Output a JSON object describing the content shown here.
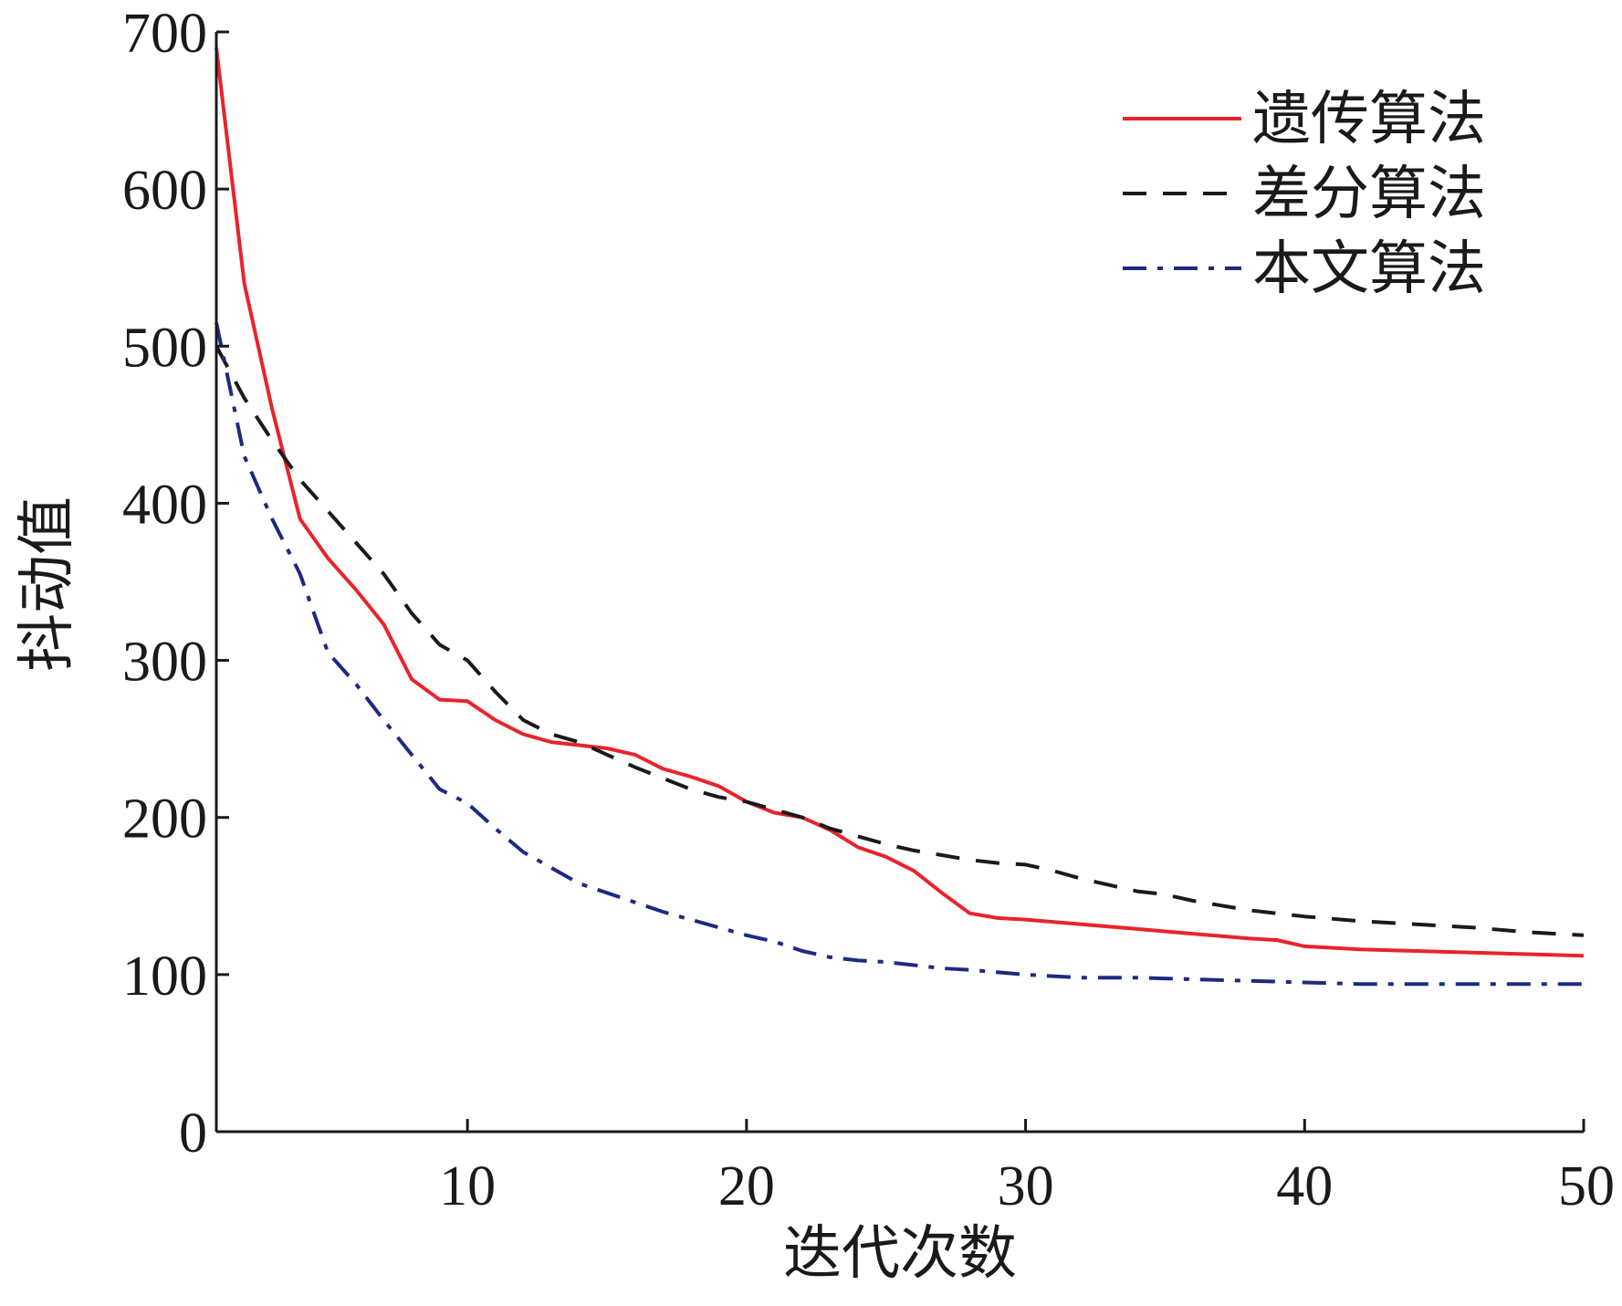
{
  "chart_data": {
    "type": "line",
    "xlabel": "迭代次数",
    "ylabel": "抖动值",
    "xlim": [
      1,
      50
    ],
    "ylim": [
      0,
      700
    ],
    "xticks": [
      10,
      20,
      30,
      40,
      50
    ],
    "yticks": [
      0,
      100,
      200,
      300,
      400,
      500,
      600,
      700
    ],
    "grid": false,
    "legend_position": "top-right",
    "series": [
      {
        "name": "遗传算法",
        "color": "#e8242b",
        "dash": "solid",
        "x": [
          1,
          2,
          3,
          4,
          5,
          6,
          7,
          8,
          9,
          10,
          11,
          12,
          13,
          14,
          15,
          16,
          17,
          18,
          19,
          20,
          21,
          22,
          23,
          24,
          25,
          26,
          27,
          28,
          29,
          30,
          32,
          34,
          36,
          38,
          39,
          40,
          42,
          44,
          46,
          48,
          50
        ],
        "y": [
          690,
          540,
          460,
          390,
          365,
          345,
          323,
          288,
          275,
          274,
          262,
          253,
          248,
          246,
          244,
          240,
          231,
          226,
          220,
          210,
          203,
          200,
          192,
          181,
          175,
          166,
          152,
          139,
          136,
          135,
          132,
          129,
          126,
          123,
          122,
          118,
          116,
          115,
          114,
          113,
          112
        ]
      },
      {
        "name": "差分算法",
        "color": "#1a1a1a",
        "dash": "dashed",
        "x": [
          1,
          2,
          3,
          4,
          5,
          6,
          7,
          8,
          9,
          10,
          11,
          12,
          13,
          14,
          15,
          16,
          17,
          18,
          19,
          20,
          21,
          22,
          23,
          24,
          25,
          26,
          27,
          28,
          29,
          30,
          31,
          32,
          33,
          34,
          35,
          36,
          38,
          40,
          42,
          44,
          46,
          48,
          50
        ],
        "y": [
          500,
          467,
          440,
          415,
          395,
          375,
          355,
          330,
          310,
          300,
          280,
          262,
          253,
          248,
          240,
          232,
          225,
          218,
          213,
          210,
          205,
          200,
          193,
          188,
          183,
          179,
          176,
          173,
          171,
          170,
          166,
          161,
          157,
          153,
          151,
          147,
          141,
          137,
          134,
          132,
          130,
          127,
          125
        ]
      },
      {
        "name": "本文算法",
        "color": "#1e2a80",
        "dash": "dashdot",
        "x": [
          1,
          2,
          3,
          4,
          5,
          6,
          7,
          8,
          9,
          10,
          11,
          12,
          13,
          14,
          15,
          16,
          17,
          18,
          19,
          20,
          21,
          22,
          23,
          24,
          25,
          26,
          27,
          28,
          30,
          32,
          34,
          36,
          38,
          40,
          42,
          44,
          46,
          48,
          50
        ],
        "y": [
          515,
          430,
          390,
          355,
          305,
          285,
          262,
          240,
          218,
          209,
          193,
          178,
          168,
          158,
          152,
          146,
          140,
          135,
          130,
          125,
          121,
          115,
          111,
          109,
          108,
          106,
          104,
          103,
          100,
          98,
          98,
          97,
          96,
          95,
          94,
          94,
          94,
          94,
          94
        ]
      }
    ]
  }
}
